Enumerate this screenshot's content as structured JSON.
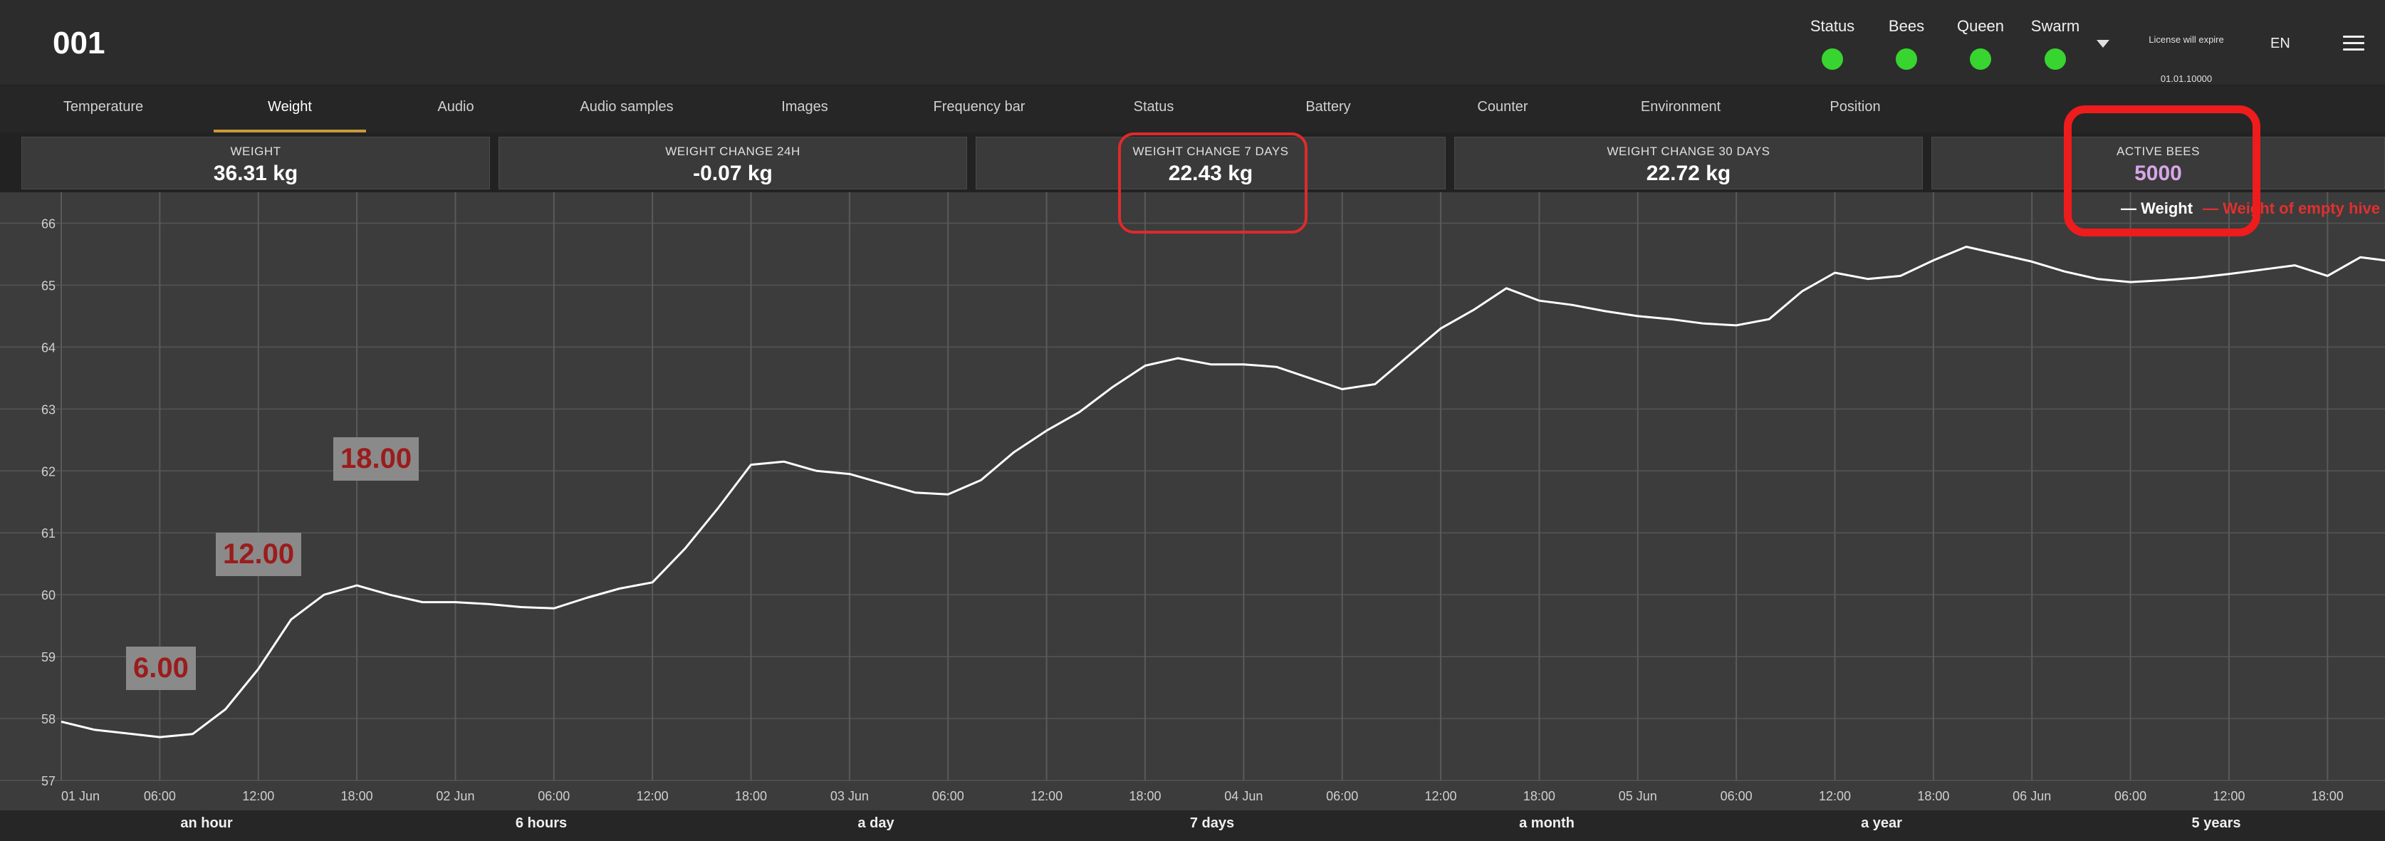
{
  "header": {
    "hive_id": "001",
    "statuses": [
      {
        "label": "Status",
        "color": "#38d430"
      },
      {
        "label": "Bees",
        "color": "#38d430"
      },
      {
        "label": "Queen",
        "color": "#38d430"
      },
      {
        "label": "Swarm",
        "color": "#38d430"
      }
    ],
    "license_label": "License will expire",
    "license_date": "01.01.10000",
    "language": "EN",
    "menu_icon": "hamburger-menu-icon"
  },
  "tabs": [
    {
      "label": "Temperature",
      "active": false
    },
    {
      "label": "Weight",
      "active": true
    },
    {
      "label": "Audio",
      "active": false
    },
    {
      "label": "Audio samples",
      "active": false
    },
    {
      "label": "Images",
      "active": false
    },
    {
      "label": "Frequency bar",
      "active": false
    },
    {
      "label": "Status",
      "active": false
    },
    {
      "label": "Battery",
      "active": false
    },
    {
      "label": "Counter",
      "active": false
    },
    {
      "label": "Environment",
      "active": false
    },
    {
      "label": "Position",
      "active": false
    }
  ],
  "cards": [
    {
      "label": "WEIGHT",
      "value": "36.31 kg"
    },
    {
      "label": "WEIGHT CHANGE 24H",
      "value": "-0.07 kg"
    },
    {
      "label": "WEIGHT CHANGE 7 DAYS",
      "value": "22.43 kg"
    },
    {
      "label": "WEIGHT CHANGE 30 DAYS",
      "value": "22.72 kg"
    },
    {
      "label": "ACTIVE BEES",
      "value": "5000"
    }
  ],
  "legend": {
    "weight": "— Weight",
    "empty_hive": "— Weight of empty hive"
  },
  "annotations": [
    "6.00",
    "12.00",
    "18.00"
  ],
  "ranges": [
    "an hour",
    "6 hours",
    "a day",
    "7 days",
    "a month",
    "a year",
    "5 years"
  ],
  "colors": {
    "accent_tab": "#c79a3a",
    "status_ok": "#38d430",
    "active_bees": "#d8a6e8",
    "highlight": "#e02a2a",
    "line": "#ffffff"
  },
  "chart_data": {
    "type": "line",
    "title": "",
    "xlabel": "",
    "ylabel": "",
    "ylim": [
      57,
      66.5
    ],
    "yticks": [
      57,
      58,
      59,
      60,
      61,
      62,
      63,
      64,
      65,
      66
    ],
    "xticks": [
      "01 Jun",
      "06:00",
      "12:00",
      "18:00",
      "02 Jun",
      "06:00",
      "12:00",
      "18:00",
      "03 Jun",
      "06:00",
      "12:00",
      "18:00",
      "04 Jun",
      "06:00",
      "12:00",
      "18:00",
      "05 Jun",
      "06:00",
      "12:00",
      "18:00",
      "06 Jun",
      "06:00",
      "12:00",
      "18:00"
    ],
    "xtick_hours": [
      0,
      6,
      12,
      18,
      24,
      30,
      36,
      42,
      48,
      54,
      60,
      66,
      72,
      78,
      84,
      90,
      96,
      102,
      108,
      114,
      120,
      126,
      132,
      138
    ],
    "x_range_hours": [
      0,
      141.5
    ],
    "grid": true,
    "legend_position": "top-right",
    "series": [
      {
        "name": "Weight",
        "x_hours": [
          0,
          2,
          4,
          6,
          8,
          10,
          12,
          14,
          16,
          18,
          20,
          22,
          24,
          26,
          28,
          30,
          32,
          34,
          36,
          38,
          40,
          42,
          44,
          46,
          48,
          50,
          52,
          54,
          56,
          58,
          60,
          62,
          64,
          66,
          68,
          70,
          72,
          74,
          76,
          78,
          80,
          82,
          84,
          86,
          88,
          90,
          92,
          94,
          96,
          98,
          100,
          102,
          104,
          106,
          108,
          110,
          112,
          114,
          116,
          118,
          120,
          122,
          124,
          126,
          128,
          130,
          132,
          134,
          136,
          138,
          140,
          141.5
        ],
        "values": [
          57.95,
          57.82,
          57.76,
          57.7,
          57.75,
          58.15,
          58.8,
          59.6,
          60.0,
          60.15,
          60.0,
          59.88,
          59.88,
          59.85,
          59.8,
          59.78,
          59.95,
          60.1,
          60.2,
          60.75,
          61.4,
          62.1,
          62.15,
          62.0,
          61.95,
          61.8,
          61.65,
          61.62,
          61.85,
          62.3,
          62.65,
          62.95,
          63.35,
          63.7,
          63.82,
          63.72,
          63.72,
          63.68,
          63.5,
          63.32,
          63.4,
          63.85,
          64.3,
          64.6,
          64.95,
          64.75,
          64.68,
          64.58,
          64.5,
          64.45,
          64.38,
          64.35,
          64.45,
          64.9,
          65.2,
          65.1,
          65.15,
          65.4,
          65.62,
          65.5,
          65.38,
          65.22,
          65.1,
          65.05,
          65.08,
          65.12,
          65.18,
          65.25,
          65.32,
          65.15,
          65.45,
          65.4
        ]
      }
    ]
  }
}
